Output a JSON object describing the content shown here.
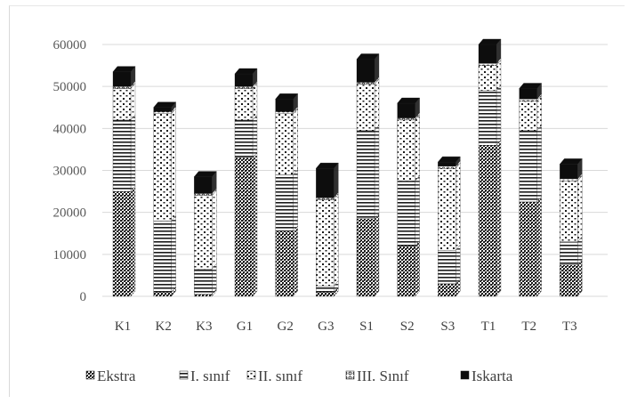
{
  "chart_data": {
    "type": "bar",
    "stacked": true,
    "three_d": true,
    "categories": [
      "K1",
      "K2",
      "K3",
      "G1",
      "G2",
      "G3",
      "S1",
      "S2",
      "S3",
      "T1",
      "T2",
      "T3"
    ],
    "series": [
      {
        "name": "Ekstra",
        "pattern": "dense-crosshatch",
        "values": [
          25000,
          1000,
          500,
          33000,
          15500,
          1000,
          18500,
          12000,
          3000,
          36000,
          22500,
          7500
        ]
      },
      {
        "name": "I. sınıf",
        "pattern": "horizontal-stripes",
        "values": [
          17000,
          17000,
          6000,
          9000,
          13500,
          1500,
          21000,
          15500,
          8000,
          13000,
          17000,
          5500
        ]
      },
      {
        "name": "II. sınıf",
        "pattern": "sparse-dots",
        "values": [
          7500,
          25500,
          17500,
          7500,
          14500,
          20500,
          11000,
          14500,
          19500,
          6000,
          7000,
          14500
        ]
      },
      {
        "name": "III. Sınıf",
        "pattern": "open-circles",
        "values": [
          500,
          500,
          500,
          500,
          500,
          500,
          500,
          500,
          500,
          500,
          500,
          500
        ]
      },
      {
        "name": "Iskarta",
        "pattern": "solid-black",
        "values": [
          3500,
          1000,
          4000,
          3000,
          3000,
          7000,
          5500,
          3500,
          1000,
          4500,
          2500,
          3500
        ]
      }
    ],
    "yticks": [
      "0",
      "10000",
      "20000",
      "30000",
      "40000",
      "50000",
      "60000"
    ],
    "ylim": [
      0,
      60000
    ],
    "grid": true,
    "legend_position": "bottom",
    "colors": {
      "bar": "#1a1a1a",
      "grid": "#d9d9d9",
      "text": "#595959"
    }
  }
}
